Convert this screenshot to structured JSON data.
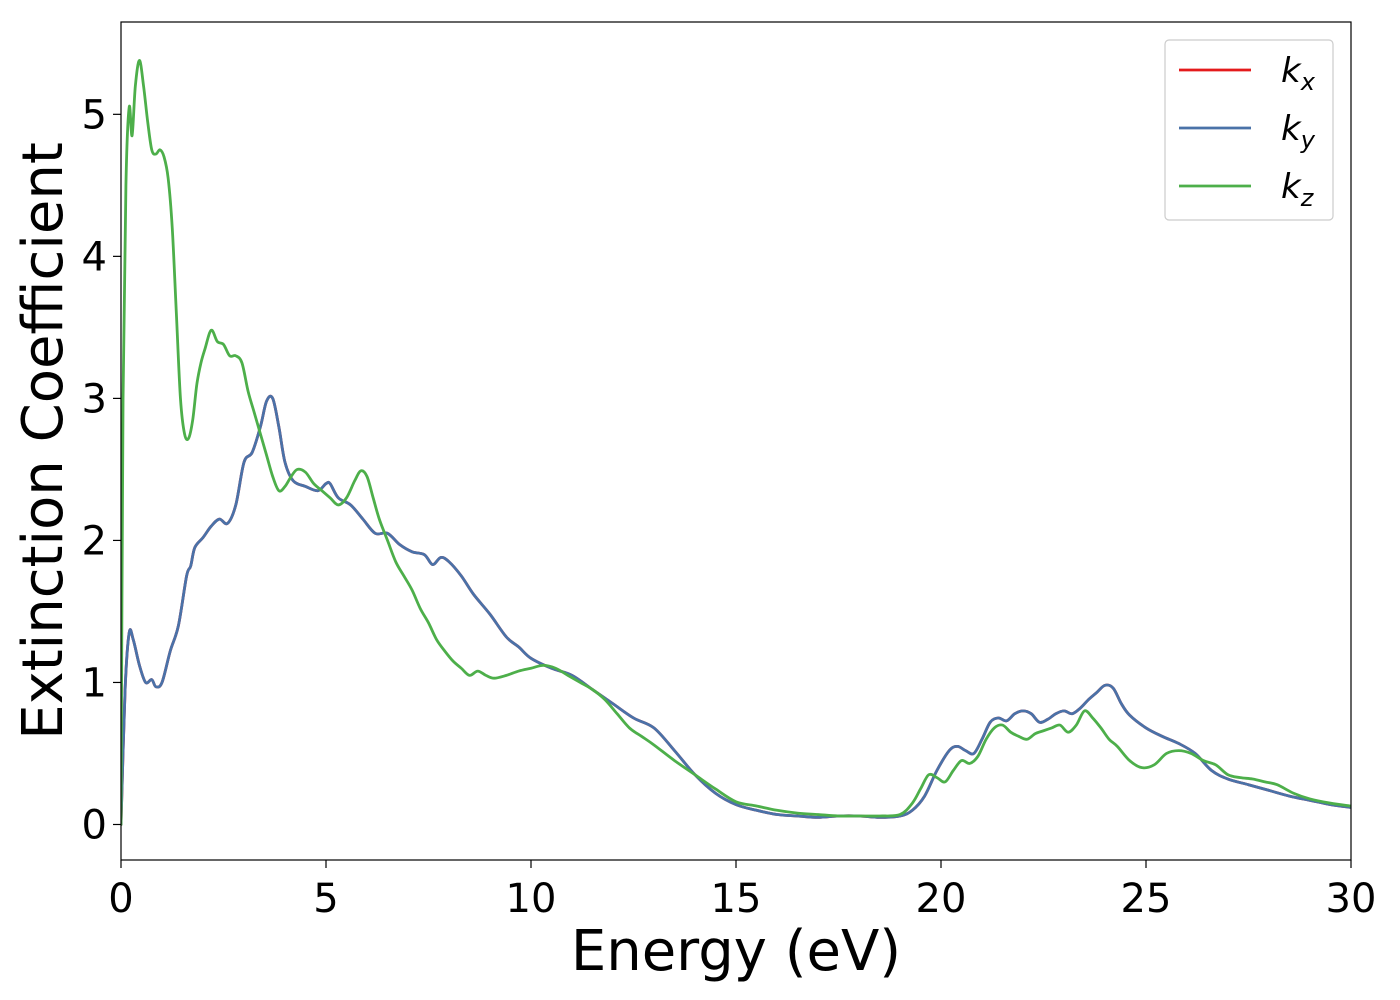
{
  "chart_data": {
    "type": "line",
    "xlabel": "Energy (eV)",
    "ylabel": "Extinction Coefficient",
    "xlim": [
      0,
      30
    ],
    "ylim": [
      -0.25,
      5.65
    ],
    "xticks": [
      0,
      5,
      10,
      15,
      20,
      25,
      30
    ],
    "yticks": [
      0,
      1,
      2,
      3,
      4,
      5
    ],
    "grid": false,
    "legend_position": "top-right",
    "series": [
      {
        "name": "k_x",
        "label_base": "k",
        "label_sub": "x",
        "color": "#e41a1c",
        "x": [
          0,
          0.1,
          0.2,
          0.3,
          0.45,
          0.6,
          0.75,
          0.85,
          1.0,
          1.2,
          1.4,
          1.6,
          1.7,
          1.8,
          2.0,
          2.2,
          2.4,
          2.6,
          2.8,
          3.0,
          3.2,
          3.4,
          3.55,
          3.7,
          3.85,
          4.0,
          4.2,
          4.5,
          4.8,
          5.0,
          5.1,
          5.3,
          5.6,
          5.9,
          6.2,
          6.5,
          6.8,
          7.1,
          7.4,
          7.6,
          7.8,
          8.0,
          8.3,
          8.6,
          9.0,
          9.4,
          9.7,
          10.0,
          10.5,
          11.0,
          11.5,
          12.0,
          12.5,
          13.0,
          13.5,
          14.0,
          14.5,
          15.0,
          15.5,
          16.0,
          16.5,
          17.0,
          17.5,
          18.0,
          18.5,
          19.0,
          19.3,
          19.6,
          19.9,
          20.2,
          20.4,
          20.6,
          20.8,
          21.0,
          21.2,
          21.4,
          21.6,
          21.8,
          22.0,
          22.2,
          22.4,
          22.6,
          22.8,
          23.0,
          23.2,
          23.4,
          23.6,
          23.8,
          24.0,
          24.2,
          24.4,
          24.6,
          25.0,
          25.4,
          25.8,
          26.2,
          26.6,
          27.0,
          27.5,
          28.0,
          28.5,
          29.0,
          29.5,
          30.0
        ],
        "y": [
          0,
          0.95,
          1.35,
          1.3,
          1.12,
          1.0,
          1.02,
          0.97,
          1.0,
          1.22,
          1.4,
          1.75,
          1.82,
          1.95,
          2.02,
          2.1,
          2.15,
          2.12,
          2.25,
          2.55,
          2.62,
          2.8,
          2.98,
          3.0,
          2.8,
          2.55,
          2.42,
          2.38,
          2.35,
          2.4,
          2.4,
          2.3,
          2.25,
          2.15,
          2.05,
          2.05,
          1.97,
          1.92,
          1.9,
          1.83,
          1.88,
          1.85,
          1.75,
          1.62,
          1.48,
          1.32,
          1.25,
          1.17,
          1.1,
          1.05,
          0.95,
          0.85,
          0.75,
          0.68,
          0.52,
          0.35,
          0.22,
          0.14,
          0.1,
          0.07,
          0.06,
          0.05,
          0.06,
          0.06,
          0.05,
          0.06,
          0.1,
          0.2,
          0.38,
          0.52,
          0.55,
          0.52,
          0.5,
          0.6,
          0.72,
          0.75,
          0.73,
          0.78,
          0.8,
          0.78,
          0.72,
          0.74,
          0.78,
          0.8,
          0.78,
          0.82,
          0.88,
          0.93,
          0.98,
          0.96,
          0.85,
          0.77,
          0.68,
          0.62,
          0.57,
          0.5,
          0.38,
          0.32,
          0.28,
          0.24,
          0.2,
          0.17,
          0.14,
          0.12
        ]
      },
      {
        "name": "k_y",
        "label_base": "k",
        "label_sub": "y",
        "color": "#4a72a8",
        "x": [
          0,
          0.1,
          0.2,
          0.3,
          0.45,
          0.6,
          0.75,
          0.85,
          1.0,
          1.2,
          1.4,
          1.6,
          1.7,
          1.8,
          2.0,
          2.2,
          2.4,
          2.6,
          2.8,
          3.0,
          3.2,
          3.4,
          3.55,
          3.7,
          3.85,
          4.0,
          4.2,
          4.5,
          4.8,
          5.0,
          5.1,
          5.3,
          5.6,
          5.9,
          6.2,
          6.5,
          6.8,
          7.1,
          7.4,
          7.6,
          7.8,
          8.0,
          8.3,
          8.6,
          9.0,
          9.4,
          9.7,
          10.0,
          10.5,
          11.0,
          11.5,
          12.0,
          12.5,
          13.0,
          13.5,
          14.0,
          14.5,
          15.0,
          15.5,
          16.0,
          16.5,
          17.0,
          17.5,
          18.0,
          18.5,
          19.0,
          19.3,
          19.6,
          19.9,
          20.2,
          20.4,
          20.6,
          20.8,
          21.0,
          21.2,
          21.4,
          21.6,
          21.8,
          22.0,
          22.2,
          22.4,
          22.6,
          22.8,
          23.0,
          23.2,
          23.4,
          23.6,
          23.8,
          24.0,
          24.2,
          24.4,
          24.6,
          25.0,
          25.4,
          25.8,
          26.2,
          26.6,
          27.0,
          27.5,
          28.0,
          28.5,
          29.0,
          29.5,
          30.0
        ],
        "y": [
          0,
          0.95,
          1.35,
          1.3,
          1.12,
          1.0,
          1.02,
          0.97,
          1.0,
          1.22,
          1.4,
          1.75,
          1.82,
          1.95,
          2.02,
          2.1,
          2.15,
          2.12,
          2.25,
          2.55,
          2.62,
          2.8,
          2.98,
          3.0,
          2.8,
          2.55,
          2.42,
          2.38,
          2.35,
          2.4,
          2.4,
          2.3,
          2.25,
          2.15,
          2.05,
          2.05,
          1.97,
          1.92,
          1.9,
          1.83,
          1.88,
          1.85,
          1.75,
          1.62,
          1.48,
          1.32,
          1.25,
          1.17,
          1.1,
          1.05,
          0.95,
          0.85,
          0.75,
          0.68,
          0.52,
          0.35,
          0.22,
          0.14,
          0.1,
          0.07,
          0.06,
          0.05,
          0.06,
          0.06,
          0.05,
          0.06,
          0.1,
          0.2,
          0.38,
          0.52,
          0.55,
          0.52,
          0.5,
          0.6,
          0.72,
          0.75,
          0.73,
          0.78,
          0.8,
          0.78,
          0.72,
          0.74,
          0.78,
          0.8,
          0.78,
          0.82,
          0.88,
          0.93,
          0.98,
          0.96,
          0.85,
          0.77,
          0.68,
          0.62,
          0.57,
          0.5,
          0.38,
          0.32,
          0.28,
          0.24,
          0.2,
          0.17,
          0.14,
          0.12
        ]
      },
      {
        "name": "k_z",
        "label_base": "k",
        "label_sub": "z",
        "color": "#4daf4a",
        "x": [
          0,
          0.05,
          0.12,
          0.2,
          0.27,
          0.35,
          0.45,
          0.55,
          0.65,
          0.75,
          0.85,
          0.95,
          1.05,
          1.15,
          1.25,
          1.35,
          1.45,
          1.55,
          1.65,
          1.75,
          1.85,
          1.95,
          2.05,
          2.2,
          2.35,
          2.5,
          2.65,
          2.8,
          2.95,
          3.1,
          3.25,
          3.4,
          3.55,
          3.7,
          3.85,
          4.0,
          4.15,
          4.3,
          4.5,
          4.7,
          4.9,
          5.1,
          5.3,
          5.5,
          5.7,
          5.85,
          6.0,
          6.15,
          6.3,
          6.5,
          6.7,
          6.9,
          7.1,
          7.3,
          7.5,
          7.7,
          7.9,
          8.1,
          8.3,
          8.5,
          8.7,
          8.9,
          9.1,
          9.4,
          9.7,
          10.0,
          10.3,
          10.6,
          10.9,
          11.2,
          11.5,
          11.8,
          12.1,
          12.4,
          12.7,
          13.0,
          13.5,
          14.0,
          14.5,
          15.0,
          15.5,
          16.0,
          16.5,
          17.0,
          17.5,
          18.0,
          18.5,
          19.0,
          19.3,
          19.5,
          19.7,
          19.9,
          20.1,
          20.3,
          20.5,
          20.7,
          20.9,
          21.1,
          21.3,
          21.5,
          21.7,
          21.9,
          22.1,
          22.3,
          22.5,
          22.7,
          22.9,
          23.1,
          23.3,
          23.5,
          23.7,
          23.9,
          24.1,
          24.3,
          24.6,
          24.9,
          25.2,
          25.5,
          25.8,
          26.1,
          26.4,
          26.7,
          27.0,
          27.3,
          27.6,
          27.9,
          28.2,
          28.6,
          29.0,
          29.5,
          30.0
        ],
        "y": [
          0,
          3.0,
          4.5,
          5.05,
          4.85,
          5.2,
          5.38,
          5.2,
          4.95,
          4.75,
          4.72,
          4.75,
          4.7,
          4.55,
          4.2,
          3.6,
          3.0,
          2.75,
          2.72,
          2.85,
          3.1,
          3.25,
          3.35,
          3.48,
          3.4,
          3.38,
          3.3,
          3.3,
          3.25,
          3.05,
          2.9,
          2.75,
          2.6,
          2.45,
          2.35,
          2.38,
          2.45,
          2.5,
          2.48,
          2.4,
          2.35,
          2.3,
          2.25,
          2.3,
          2.42,
          2.49,
          2.45,
          2.3,
          2.15,
          2.0,
          1.85,
          1.75,
          1.65,
          1.52,
          1.42,
          1.3,
          1.22,
          1.15,
          1.1,
          1.05,
          1.08,
          1.05,
          1.03,
          1.05,
          1.08,
          1.1,
          1.12,
          1.1,
          1.05,
          1.0,
          0.95,
          0.88,
          0.78,
          0.68,
          0.62,
          0.56,
          0.45,
          0.35,
          0.25,
          0.16,
          0.13,
          0.1,
          0.08,
          0.07,
          0.06,
          0.06,
          0.06,
          0.07,
          0.15,
          0.25,
          0.35,
          0.33,
          0.3,
          0.38,
          0.45,
          0.43,
          0.48,
          0.6,
          0.68,
          0.7,
          0.65,
          0.62,
          0.6,
          0.64,
          0.66,
          0.68,
          0.7,
          0.65,
          0.7,
          0.8,
          0.75,
          0.68,
          0.6,
          0.55,
          0.45,
          0.4,
          0.42,
          0.5,
          0.52,
          0.5,
          0.45,
          0.42,
          0.35,
          0.33,
          0.32,
          0.3,
          0.28,
          0.22,
          0.18,
          0.15,
          0.13
        ]
      }
    ]
  }
}
